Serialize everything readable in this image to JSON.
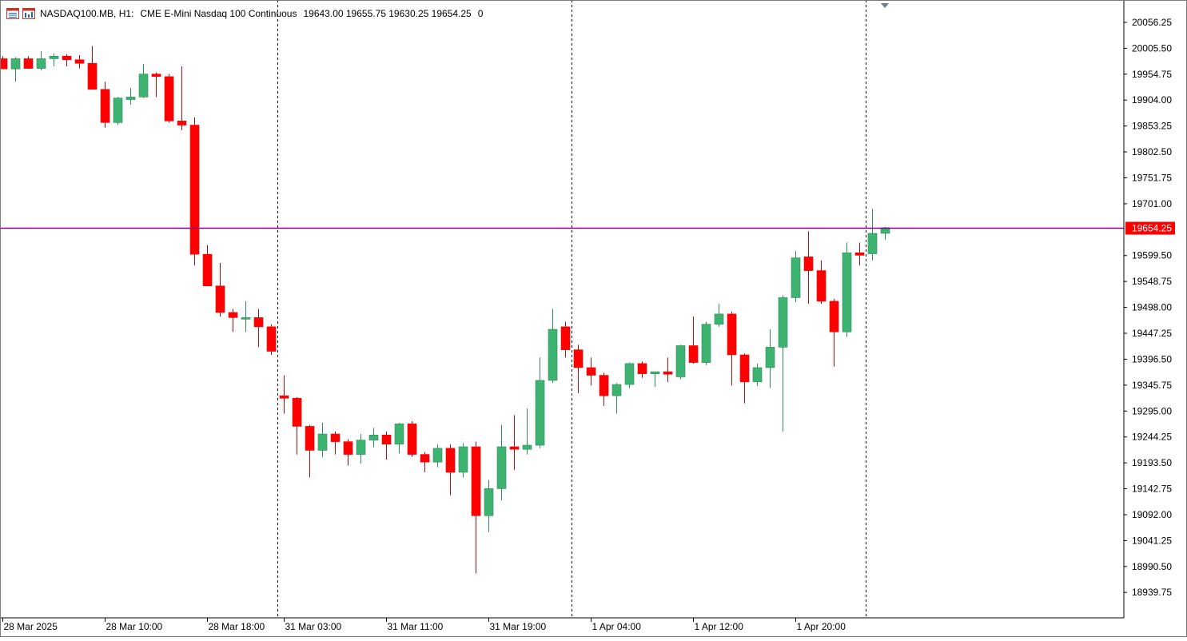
{
  "header": {
    "symbol_tf": "NASDAQ100.MB, H1:",
    "description": "CME E-Mini Nasdaq 100 Continuous",
    "ohlc": "19643.00 19655.75 19630.25 19654.25",
    "volume": "0"
  },
  "icons": {
    "toolbar_list": "window-list-icon",
    "toolbar_chart": "chart-bars-icon"
  },
  "colors": {
    "bull": "#3cb371",
    "bear": "#ff0000",
    "wick_bull": "#2e8b57",
    "wick_bear": "#d00000",
    "price_line": "#800080",
    "price_tag": "#ff0000",
    "grid_sep": "#000000",
    "bg": "#ffffff"
  },
  "chart_data": {
    "type": "candlestick",
    "y_axis_ticks": [
      "20056.25",
      "20005.50",
      "19954.75",
      "19904.00",
      "19853.25",
      "19802.50",
      "19751.75",
      "19701.00",
      "19599.50",
      "19548.75",
      "19498.00",
      "19447.25",
      "19396.50",
      "19345.75",
      "19295.00",
      "19244.25",
      "19193.50",
      "19142.75",
      "19092.00",
      "19041.25",
      "18990.50",
      "18939.75"
    ],
    "current_price": "19654.25",
    "x_axis_ticks": [
      "28 Mar 2025",
      "28 Mar 10:00",
      "28 Mar 18:00",
      "31 Mar 03:00",
      "31 Mar 11:00",
      "31 Mar 19:00",
      "1 Apr 04:00",
      "1 Apr 12:00",
      "1 Apr 20:00"
    ],
    "x_tick_bar_index": [
      0,
      8,
      16,
      22,
      30,
      38,
      46,
      54,
      62
    ],
    "day_separators_after_bar": [
      21.5,
      44.5,
      67.5
    ],
    "ylim": [
      18890.0,
      20100.0
    ],
    "candles": [
      {
        "o": 19985,
        "h": 19990,
        "l": 19965,
        "c": 19965
      },
      {
        "o": 19965,
        "h": 19988,
        "l": 19940,
        "c": 19985
      },
      {
        "o": 19985,
        "h": 19990,
        "l": 19965,
        "c": 19966
      },
      {
        "o": 19966,
        "h": 20000,
        "l": 19962,
        "c": 19985
      },
      {
        "o": 19985,
        "h": 19995,
        "l": 19970,
        "c": 19990
      },
      {
        "o": 19990,
        "h": 19994,
        "l": 19970,
        "c": 19983
      },
      {
        "o": 19983,
        "h": 19992,
        "l": 19966,
        "c": 19976
      },
      {
        "o": 19976,
        "h": 20010,
        "l": 19925,
        "c": 19925
      },
      {
        "o": 19925,
        "h": 19940,
        "l": 19850,
        "c": 19860
      },
      {
        "o": 19860,
        "h": 19910,
        "l": 19855,
        "c": 19908
      },
      {
        "o": 19905,
        "h": 19928,
        "l": 19895,
        "c": 19910
      },
      {
        "o": 19910,
        "h": 19975,
        "l": 19908,
        "c": 19955
      },
      {
        "o": 19955,
        "h": 19958,
        "l": 19910,
        "c": 19950
      },
      {
        "o": 19950,
        "h": 19955,
        "l": 19860,
        "c": 19863
      },
      {
        "o": 19863,
        "h": 19970,
        "l": 19845,
        "c": 19855
      },
      {
        "o": 19855,
        "h": 19870,
        "l": 19580,
        "c": 19602
      },
      {
        "o": 19602,
        "h": 19620,
        "l": 19540,
        "c": 19540
      },
      {
        "o": 19540,
        "h": 19585,
        "l": 19480,
        "c": 19488
      },
      {
        "o": 19488,
        "h": 19495,
        "l": 19450,
        "c": 19478
      },
      {
        "o": 19478,
        "h": 19510,
        "l": 19450,
        "c": 19478
      },
      {
        "o": 19478,
        "h": 19495,
        "l": 19420,
        "c": 19460
      },
      {
        "o": 19460,
        "h": 19465,
        "l": 19405,
        "c": 19412
      },
      {
        "o": 19325,
        "h": 19365,
        "l": 19290,
        "c": 19320
      },
      {
        "o": 19320,
        "h": 19322,
        "l": 19210,
        "c": 19265
      },
      {
        "o": 19265,
        "h": 19268,
        "l": 19165,
        "c": 19218
      },
      {
        "o": 19218,
        "h": 19272,
        "l": 19205,
        "c": 19250
      },
      {
        "o": 19250,
        "h": 19255,
        "l": 19210,
        "c": 19235
      },
      {
        "o": 19235,
        "h": 19240,
        "l": 19188,
        "c": 19210
      },
      {
        "o": 19210,
        "h": 19250,
        "l": 19192,
        "c": 19238
      },
      {
        "o": 19238,
        "h": 19262,
        "l": 19224,
        "c": 19248
      },
      {
        "o": 19248,
        "h": 19255,
        "l": 19200,
        "c": 19230
      },
      {
        "o": 19230,
        "h": 19272,
        "l": 19212,
        "c": 19270
      },
      {
        "o": 19270,
        "h": 19275,
        "l": 19205,
        "c": 19210
      },
      {
        "o": 19210,
        "h": 19215,
        "l": 19175,
        "c": 19195
      },
      {
        "o": 19195,
        "h": 19230,
        "l": 19185,
        "c": 19222
      },
      {
        "o": 19222,
        "h": 19230,
        "l": 19130,
        "c": 19175
      },
      {
        "o": 19175,
        "h": 19232,
        "l": 19165,
        "c": 19225
      },
      {
        "o": 19225,
        "h": 19235,
        "l": 18977,
        "c": 19090
      },
      {
        "o": 19090,
        "h": 19160,
        "l": 19058,
        "c": 19143
      },
      {
        "o": 19143,
        "h": 19268,
        "l": 19120,
        "c": 19225
      },
      {
        "o": 19225,
        "h": 19287,
        "l": 19180,
        "c": 19220
      },
      {
        "o": 19220,
        "h": 19300,
        "l": 19210,
        "c": 19228
      },
      {
        "o": 19228,
        "h": 19400,
        "l": 19222,
        "c": 19355
      },
      {
        "o": 19355,
        "h": 19495,
        "l": 19350,
        "c": 19455
      },
      {
        "o": 19460,
        "h": 19470,
        "l": 19400,
        "c": 19415
      },
      {
        "o": 19415,
        "h": 19425,
        "l": 19330,
        "c": 19380
      },
      {
        "o": 19380,
        "h": 19400,
        "l": 19345,
        "c": 19365
      },
      {
        "o": 19365,
        "h": 19370,
        "l": 19305,
        "c": 19325
      },
      {
        "o": 19325,
        "h": 19350,
        "l": 19290,
        "c": 19347
      },
      {
        "o": 19347,
        "h": 19390,
        "l": 19340,
        "c": 19388
      },
      {
        "o": 19388,
        "h": 19392,
        "l": 19360,
        "c": 19368
      },
      {
        "o": 19368,
        "h": 19372,
        "l": 19342,
        "c": 19372
      },
      {
        "o": 19372,
        "h": 19400,
        "l": 19352,
        "c": 19367
      },
      {
        "o": 19362,
        "h": 19425,
        "l": 19357,
        "c": 19423
      },
      {
        "o": 19423,
        "h": 19480,
        "l": 19388,
        "c": 19390
      },
      {
        "o": 19390,
        "h": 19470,
        "l": 19385,
        "c": 19465
      },
      {
        "o": 19465,
        "h": 19505,
        "l": 19460,
        "c": 19485
      },
      {
        "o": 19485,
        "h": 19490,
        "l": 19345,
        "c": 19405
      },
      {
        "o": 19405,
        "h": 19408,
        "l": 19310,
        "c": 19352
      },
      {
        "o": 19352,
        "h": 19388,
        "l": 19344,
        "c": 19380
      },
      {
        "o": 19380,
        "h": 19455,
        "l": 19340,
        "c": 19420
      },
      {
        "o": 19420,
        "h": 19522,
        "l": 19255,
        "c": 19517
      },
      {
        "o": 19517,
        "h": 19608,
        "l": 19508,
        "c": 19595
      },
      {
        "o": 19597,
        "h": 19647,
        "l": 19505,
        "c": 19570
      },
      {
        "o": 19570,
        "h": 19590,
        "l": 19505,
        "c": 19510
      },
      {
        "o": 19510,
        "h": 19515,
        "l": 19382,
        "c": 19450
      },
      {
        "o": 19450,
        "h": 19625,
        "l": 19440,
        "c": 19605
      },
      {
        "o": 19605,
        "h": 19625,
        "l": 19580,
        "c": 19600
      },
      {
        "o": 19603,
        "h": 19691,
        "l": 19590,
        "c": 19643
      },
      {
        "o": 19643,
        "h": 19656,
        "l": 19630,
        "c": 19654
      }
    ]
  }
}
